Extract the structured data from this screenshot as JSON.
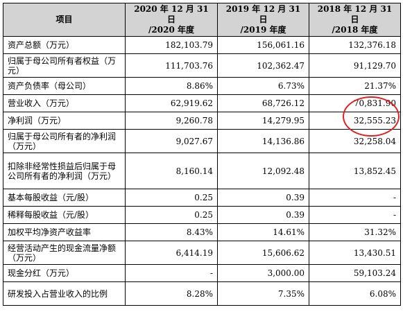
{
  "header": {
    "item": "项目",
    "col1_line1": "2020 年 12 月 31 日",
    "col1_line2": "/2020 年度",
    "col2_line1": "2019 年 12 月 31 日",
    "col2_line2": "/2019 年度",
    "col3_line1": "2018 年 12 月 31 日",
    "col3_line2": "/2018 年度"
  },
  "rows": [
    {
      "label": "资产总额（万元）",
      "v2020": "182,103.79",
      "v2019": "156,061.16",
      "v2018": "132,376.18"
    },
    {
      "label": "归属于母公司所有者权益（万元）",
      "v2020": "111,703.76",
      "v2019": "102,362.47",
      "v2018": "91,129.70"
    },
    {
      "label": "资产负债率（母公司）",
      "v2020": "8.86%",
      "v2019": "6.73%",
      "v2018": "21.37%"
    },
    {
      "label": "营业收入（万元）",
      "v2020": "62,919.62",
      "v2019": "68,726.12",
      "v2018": "70,831.90"
    },
    {
      "label": "净利润（万元）",
      "v2020": "9,260.78",
      "v2019": "14,279.95",
      "v2018": "32,555.23"
    },
    {
      "label": "归属于母公司所有者的净利润（万元）",
      "v2020": "9,027.67",
      "v2019": "14,136.86",
      "v2018": "32,258.04"
    },
    {
      "label": "扣除非经常性损益后归属于母公司所有者的净利润（万元）",
      "v2020": "8,160.14",
      "v2019": "12,092.48",
      "v2018": "13,852.45"
    },
    {
      "label": "基本每股收益（元/股）",
      "v2020": "0.25",
      "v2019": "0.39",
      "v2018": "-"
    },
    {
      "label": "稀释每股收益（元/股）",
      "v2020": "0.25",
      "v2019": "0.39",
      "v2018": "-"
    },
    {
      "label": "加权平均净资产收益率",
      "v2020": "8.43%",
      "v2019": "14.61%",
      "v2018": "31.32%"
    },
    {
      "label": "经营活动产生的现金流量净额（万元）",
      "v2020": "6,414.19",
      "v2019": "15,606.62",
      "v2018": "13,430.51"
    },
    {
      "label": "现金分红（万元）",
      "v2020": "-",
      "v2019": "3,000.00",
      "v2018": "59,103.24"
    },
    {
      "label": "研发投入占营业收入的比例",
      "v2020": "8.28%",
      "v2019": "7.35%",
      "v2018": "6.08%"
    }
  ],
  "highlight_color": "#e02020"
}
